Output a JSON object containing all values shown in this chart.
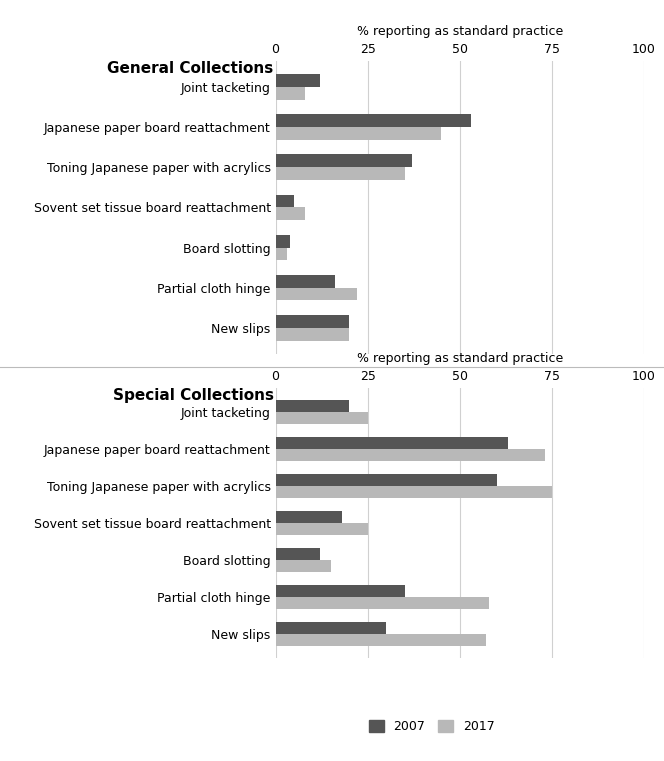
{
  "general": {
    "title": "General Collections",
    "categories": [
      "New slips",
      "Partial cloth hinge",
      "Board slotting",
      "Sovent set tissue board reattachment",
      "Toning Japanese paper with acrylics",
      "Japanese paper board reattachment",
      "Joint tacketing"
    ],
    "values_2007": [
      20,
      16,
      4,
      5,
      37,
      53,
      12
    ],
    "values_2017": [
      20,
      22,
      3,
      8,
      35,
      45,
      8
    ]
  },
  "special": {
    "title": "Special Collections",
    "categories": [
      "New slips",
      "Partial cloth hinge",
      "Board slotting",
      "Sovent set tissue board reattachment",
      "Toning Japanese paper with acrylics",
      "Japanese paper board reattachment",
      "Joint tacketing"
    ],
    "values_2007": [
      30,
      35,
      12,
      18,
      60,
      63,
      20
    ],
    "values_2017": [
      57,
      58,
      15,
      25,
      75,
      73,
      25
    ]
  },
  "xlabel": "% reporting as standard practice",
  "xlim": [
    0,
    100
  ],
  "xticks": [
    0,
    25,
    50,
    75,
    100
  ],
  "color_2007": "#555555",
  "color_2017": "#b8b8b8",
  "legend_2007": "2007",
  "legend_2017": "2017",
  "bar_height": 0.32,
  "background_color": "#ffffff",
  "title_fontsize": 11,
  "label_fontsize": 9,
  "tick_fontsize": 9,
  "xlabel_fontsize": 9
}
